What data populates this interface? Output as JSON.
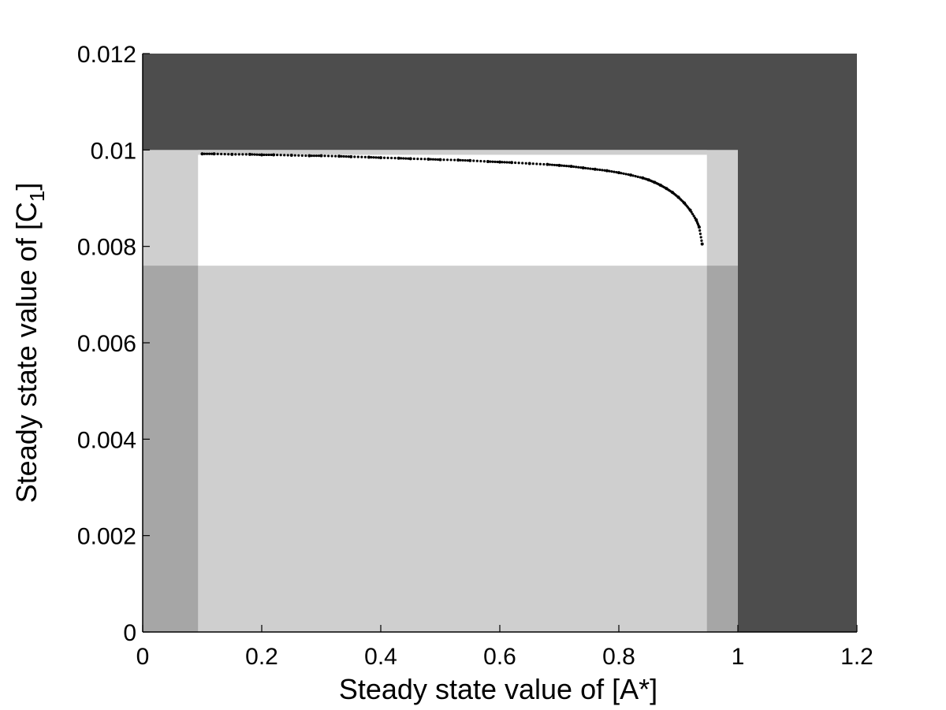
{
  "chart_data": {
    "type": "scatter",
    "xlabel": "Steady state value of [A*]",
    "ylabel_main": "Steady state value of [C",
    "ylabel_sub": "1",
    "ylabel_close": "]",
    "xlim": [
      0,
      1.2
    ],
    "ylim": [
      0,
      0.012
    ],
    "xticks": [
      "0",
      "0.2",
      "0.4",
      "0.6",
      "0.8",
      "1",
      "1.2"
    ],
    "yticks": [
      "0",
      "0.002",
      "0.004",
      "0.006",
      "0.008",
      "0.01",
      "0.012"
    ],
    "grid": false,
    "legend": "none",
    "regions": [
      {
        "x": [
          0,
          1.2
        ],
        "y": [
          0,
          0.012
        ],
        "color": "#4d4d4d"
      },
      {
        "x": [
          0,
          1.0
        ],
        "y": [
          0,
          0.01
        ],
        "color": "#a6a6a6"
      },
      {
        "x": [
          0.093,
          0.948
        ],
        "y": [
          0,
          0.01
        ],
        "color": "#cfcfcf"
      },
      {
        "x": [
          0,
          1.0
        ],
        "y": [
          0.0076,
          0.01
        ],
        "color": "#cfcfcf"
      },
      {
        "x": [
          0.093,
          0.948
        ],
        "y": [
          0.0076,
          0.0099
        ],
        "color": "#ffffff"
      }
    ],
    "series": [
      {
        "color": "#000000",
        "x": [
          0.1,
          0.12,
          0.15,
          0.18,
          0.2,
          0.22,
          0.25,
          0.28,
          0.3,
          0.33,
          0.35,
          0.38,
          0.4,
          0.43,
          0.45,
          0.48,
          0.5,
          0.53,
          0.55,
          0.58,
          0.6,
          0.62,
          0.65,
          0.68,
          0.7,
          0.72,
          0.74,
          0.76,
          0.78,
          0.8,
          0.82,
          0.84,
          0.85,
          0.86,
          0.87,
          0.88,
          0.89,
          0.9,
          0.91,
          0.92,
          0.93,
          0.935,
          0.94
        ],
        "y": [
          0.00992,
          0.00992,
          0.00991,
          0.00991,
          0.0099,
          0.0099,
          0.00989,
          0.00988,
          0.00988,
          0.00987,
          0.00986,
          0.00985,
          0.00984,
          0.00983,
          0.00982,
          0.00981,
          0.0098,
          0.00979,
          0.00978,
          0.00976,
          0.00975,
          0.00974,
          0.00972,
          0.0097,
          0.00968,
          0.00966,
          0.00963,
          0.0096,
          0.00957,
          0.00953,
          0.00948,
          0.00942,
          0.00938,
          0.00933,
          0.00927,
          0.0092,
          0.00912,
          0.00902,
          0.0089,
          0.00875,
          0.00855,
          0.0084,
          0.00805
        ]
      }
    ]
  }
}
